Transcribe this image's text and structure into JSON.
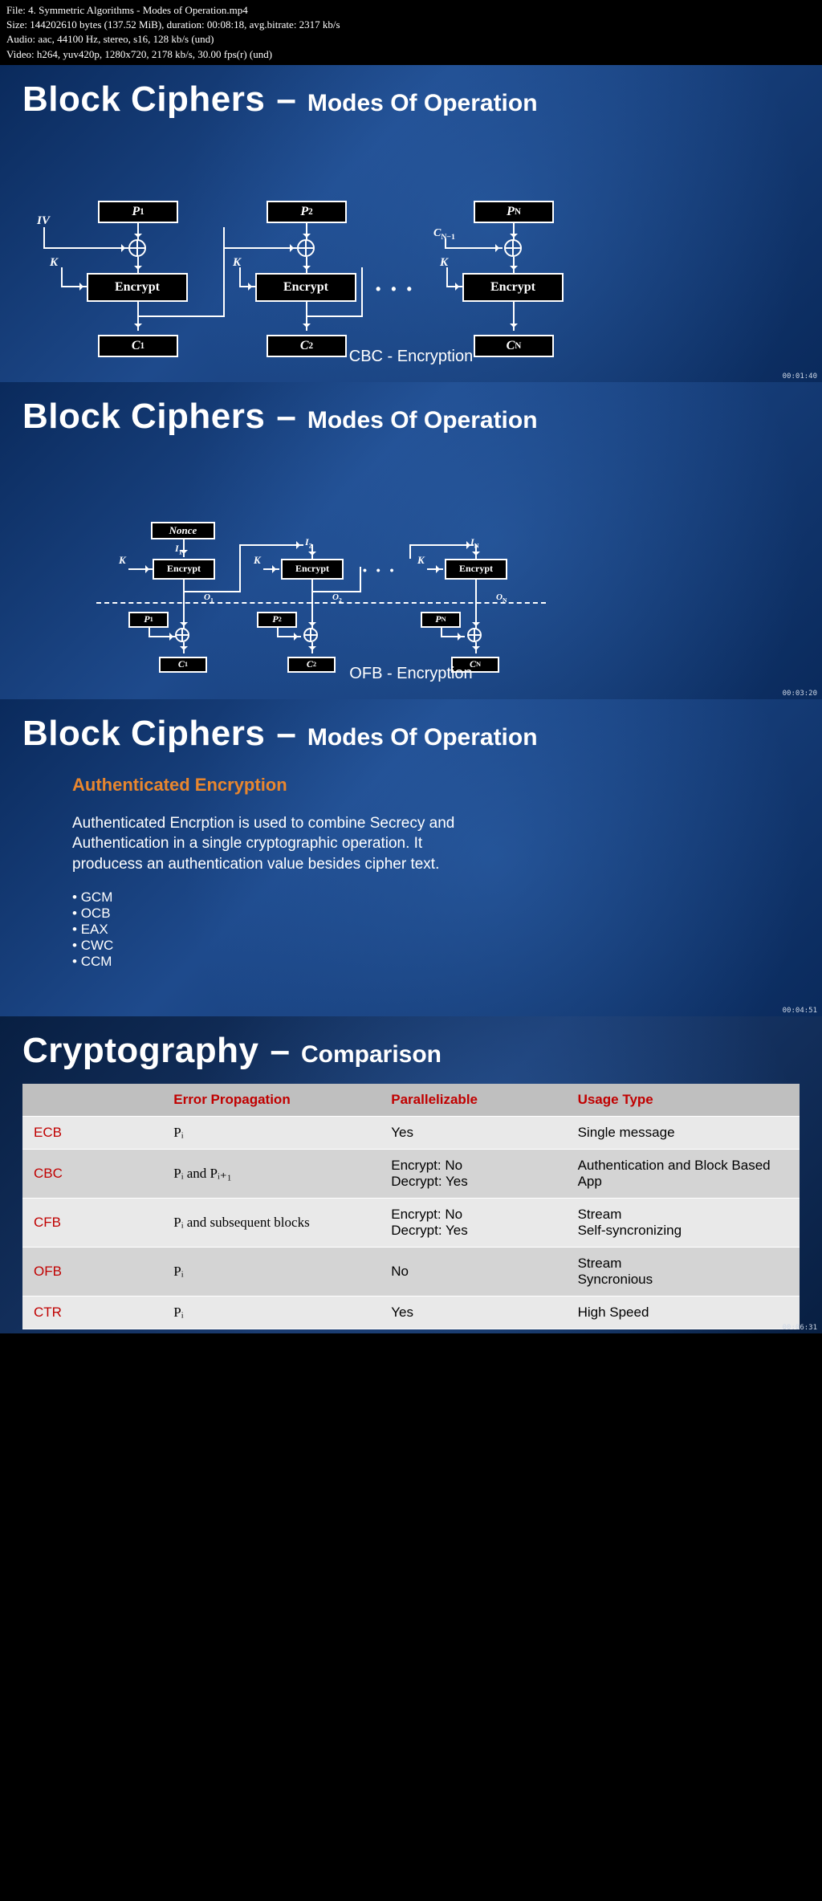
{
  "meta": {
    "file": "File: 4. Symmetric Algorithms - Modes of Operation.mp4",
    "size": "Size: 144202610 bytes (137.52 MiB), duration: 00:08:18, avg.bitrate: 2317 kb/s",
    "audio": "Audio: aac, 44100 Hz, stereo, s16, 128 kb/s (und)",
    "video": "Video: h264, yuv420p, 1280x720, 2178 kb/s, 30.00 fps(r) (und)"
  },
  "titles": {
    "main1": "Block Ciphers",
    "dash": "–",
    "sub1": "Modes Of Operation",
    "main4": "Cryptography",
    "sub4": "Comparison"
  },
  "slide1": {
    "caption": "CBC - Encryption",
    "timestamp": "00:01:40",
    "labels": {
      "IV": "IV",
      "K": "K",
      "P1": "P",
      "P1s": "1",
      "P2": "P",
      "P2s": "2",
      "PN": "P",
      "PNs": "N",
      "Enc": "Encrypt",
      "C1": "C",
      "C1s": "1",
      "C2": "C",
      "C2s": "2",
      "CN": "C",
      "CNs": "N",
      "CNm1": "C",
      "CNm1s": "N−1"
    }
  },
  "slide2": {
    "caption": "OFB - Encryption",
    "timestamp": "00:03:20",
    "labels": {
      "Nonce": "Nonce",
      "K": "K",
      "I1": "I",
      "I1s": "1",
      "I2": "I",
      "I2s": "2",
      "IN": "I",
      "INs": "N",
      "Enc": "Encrypt",
      "O1": "O",
      "O1s": "1",
      "O2": "O",
      "O2s": "2",
      "ON": "O",
      "ONs": "N",
      "P1": "P",
      "P1s": "1",
      "P2": "P",
      "P2s": "2",
      "PN": "P",
      "PNs": "N",
      "C1": "C",
      "C1s": "1",
      "C2": "C",
      "C2s": "2",
      "CN": "C",
      "CNs": "N"
    }
  },
  "slide3": {
    "subtitle": "Authenticated Encryption",
    "body": "Authenticated Encrption is used to combine Secrecy and Authentication in a single cryptographic operation. It producess an authentication value besides cipher text.",
    "items": [
      "GCM",
      "OCB",
      "EAX",
      "CWC",
      "CCM"
    ],
    "timestamp": "00:04:51"
  },
  "slide4": {
    "timestamp": "00:06:31",
    "headers": [
      "",
      "Error Propagation",
      "Parallelizable",
      "Usage Type"
    ],
    "rows": [
      {
        "mode": "ECB",
        "err": "Pᵢ",
        "par": "Yes",
        "use": "Single message"
      },
      {
        "mode": "CBC",
        "err": "Pᵢ  and  Pᵢ₊₁",
        "par": "Encrypt: No\nDecrypt: Yes",
        "use": "Authentication and Block Based App"
      },
      {
        "mode": "CFB",
        "err": "Pᵢ and subsequent blocks",
        "par": "Encrypt: No\nDecrypt: Yes",
        "use": "Stream\nSelf-syncronizing"
      },
      {
        "mode": "OFB",
        "err": "Pᵢ",
        "par": "No",
        "use": "Stream\nSyncronious"
      },
      {
        "mode": "CTR",
        "err": "Pᵢ",
        "par": "Yes",
        "use": "High Speed"
      }
    ]
  },
  "colors": {
    "slide_bg_dark": "#0a2a5c",
    "slide_bg_mid": "#1e4a8c",
    "orange": "#e8862e",
    "red": "#c00000",
    "table_header": "#bfbfbf",
    "table_odd": "#e9e9e9",
    "table_even": "#d4d4d4"
  }
}
